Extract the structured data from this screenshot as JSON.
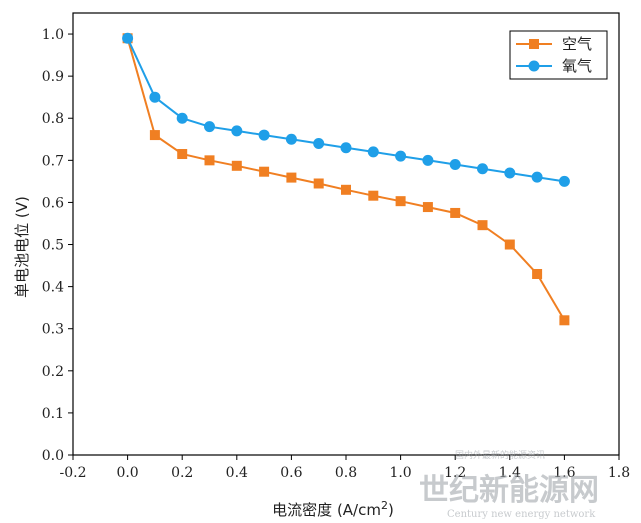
{
  "chart_data": {
    "type": "line",
    "title": "",
    "xlabel": "电流密度 (A/cm",
    "xlabel_sup": "2",
    "xlabel_close": ")",
    "ylabel": "单电池电位 (V)",
    "xlim": [
      -0.2,
      1.8
    ],
    "ylim": [
      0.0,
      1.05
    ],
    "x_ticks": [
      -0.2,
      0.0,
      0.2,
      0.4,
      0.6,
      0.8,
      1.0,
      1.2,
      1.4,
      1.6,
      1.8
    ],
    "x_tick_labels": [
      "-0.2",
      "0.0",
      "0.2",
      "0.4",
      "0.6",
      "0.8",
      "1.0",
      "1.2",
      "1.4",
      "1.6",
      "1.8"
    ],
    "y_ticks": [
      0.0,
      0.1,
      0.2,
      0.3,
      0.4,
      0.5,
      0.6,
      0.7,
      0.8,
      0.9,
      1.0
    ],
    "y_tick_labels": [
      "0.0",
      "0.1",
      "0.2",
      "0.3",
      "0.4",
      "0.5",
      "0.6",
      "0.7",
      "0.8",
      "0.9",
      "1.0"
    ],
    "grid": false,
    "legend_position": "top-right",
    "series": [
      {
        "name": "空气",
        "color": "#f07f22",
        "marker": "square",
        "x": [
          0.0,
          0.1,
          0.2,
          0.3,
          0.4,
          0.5,
          0.6,
          0.7,
          0.8,
          0.9,
          1.0,
          1.1,
          1.2,
          1.3,
          1.4,
          1.5,
          1.6
        ],
        "y": [
          0.99,
          0.76,
          0.715,
          0.7,
          0.687,
          0.673,
          0.659,
          0.645,
          0.63,
          0.616,
          0.603,
          0.589,
          0.575,
          0.546,
          0.5,
          0.43,
          0.32
        ]
      },
      {
        "name": "氧气",
        "color": "#1f9fe8",
        "marker": "circle",
        "x": [
          0.0,
          0.1,
          0.2,
          0.3,
          0.4,
          0.5,
          0.6,
          0.7,
          0.8,
          0.9,
          1.0,
          1.1,
          1.2,
          1.3,
          1.4,
          1.5,
          1.6
        ],
        "y": [
          0.99,
          0.85,
          0.8,
          0.78,
          0.77,
          0.76,
          0.75,
          0.74,
          0.73,
          0.72,
          0.71,
          0.7,
          0.69,
          0.68,
          0.67,
          0.66,
          0.65
        ]
      }
    ]
  },
  "watermark": {
    "main": "世纪新能源网",
    "sub": "Century new energy network",
    "small": "国内外最新的能源资讯"
  }
}
